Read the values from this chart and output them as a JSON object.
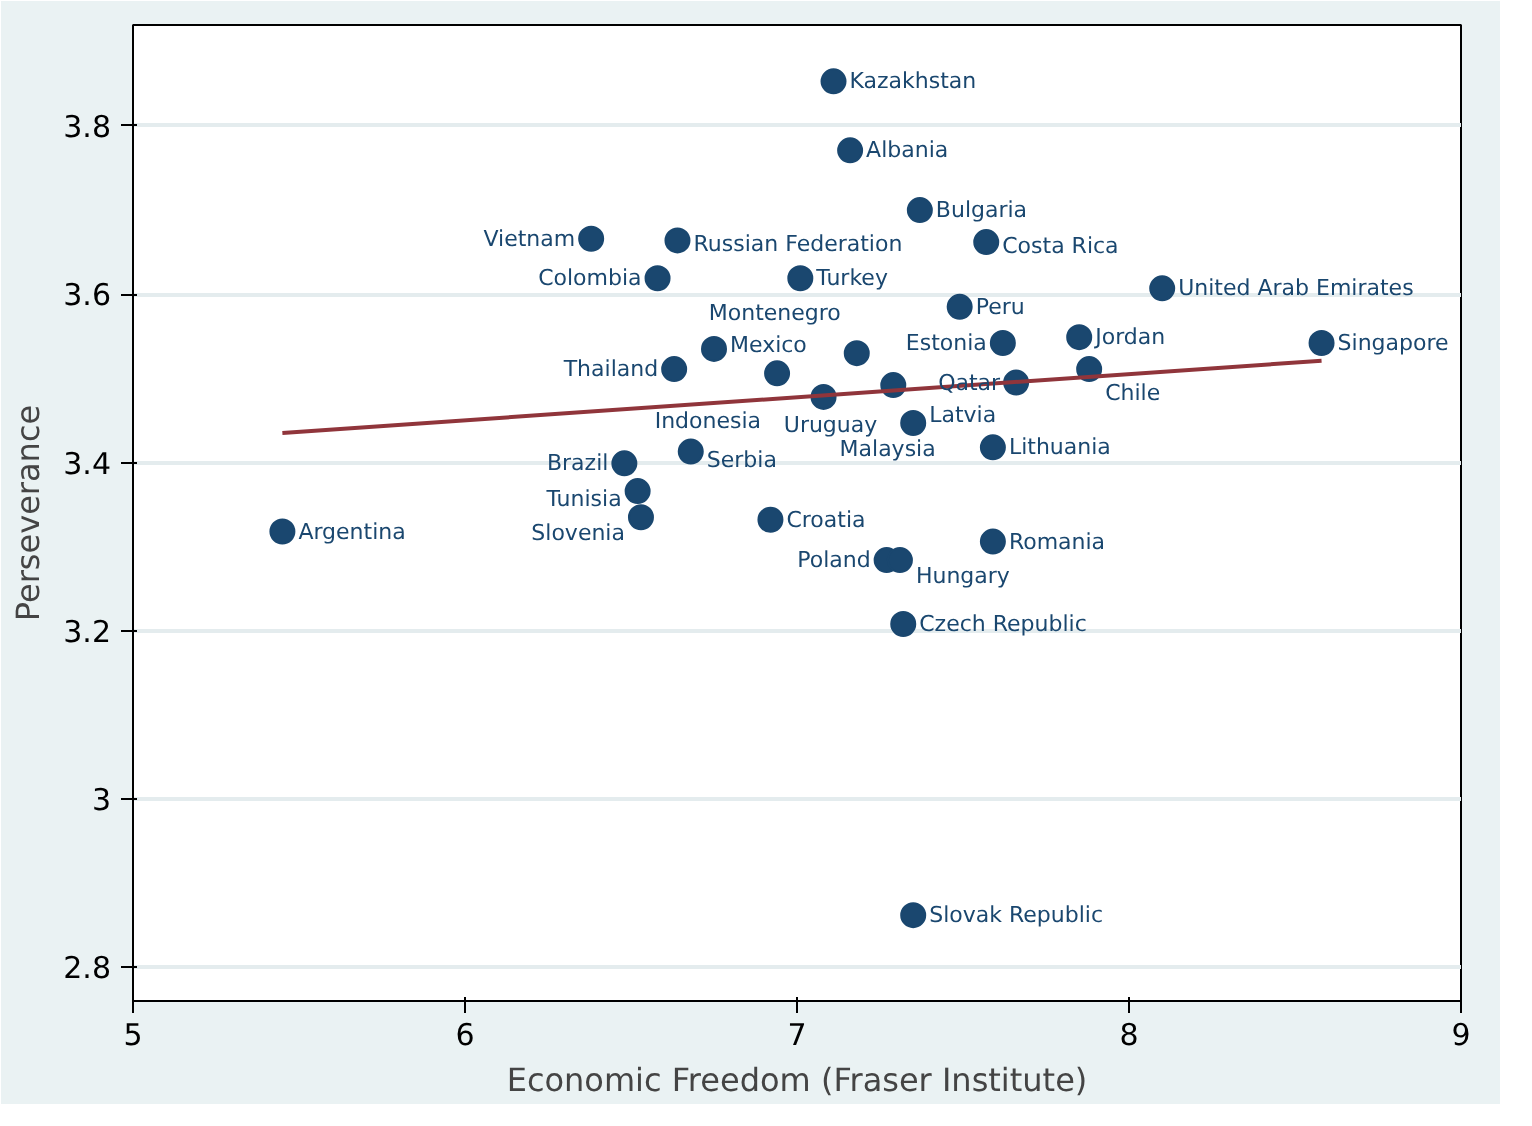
{
  "chart_data": {
    "type": "scatter",
    "xlabel": "Economic Freedom (Fraser Institute)",
    "ylabel": "Perseverance",
    "xlim": [
      5,
      9
    ],
    "ylim": [
      2.76,
      3.92
    ],
    "xticks": [
      5,
      6,
      7,
      8,
      9
    ],
    "yticks": [
      2.8,
      3,
      3.2,
      3.4,
      3.6,
      3.8
    ],
    "grid": "y",
    "marker": "circle",
    "series": [
      {
        "type": "scatter",
        "color": "#1a476f",
        "x": [
          7.11,
          7.16,
          7.37,
          6.38,
          6.64,
          7.57,
          6.58,
          7.01,
          8.1,
          7.49,
          7.85,
          8.58,
          6.75,
          7.18,
          7.62,
          6.63,
          6.94,
          7.88,
          7.29,
          7.66,
          7.08,
          7.35,
          7.59,
          6.68,
          6.48,
          6.52,
          6.53,
          6.92,
          5.45,
          7.59,
          7.27,
          7.31,
          7.32,
          7.35
        ],
        "values": [
          3.853,
          3.771,
          3.7,
          3.666,
          3.664,
          3.662,
          3.619,
          3.619,
          3.607,
          3.585,
          3.549,
          3.542,
          3.535,
          3.53,
          3.542,
          3.511,
          3.506,
          3.511,
          3.492,
          3.495,
          3.478,
          3.447,
          3.418,
          3.413,
          3.399,
          3.366,
          3.335,
          3.332,
          3.318,
          3.306,
          3.284,
          3.284,
          3.208,
          2.862
        ]
      },
      {
        "type": "line",
        "marker": "none",
        "color": "#90353b",
        "x": [
          5.45,
          8.58
        ],
        "values": [
          3.435,
          3.521
        ]
      }
    ],
    "annotations": [
      {
        "text": "Kazakhstan",
        "x": 7.11,
        "y": 3.853
      },
      {
        "text": "Albania",
        "x": 7.16,
        "y": 3.771
      },
      {
        "text": "Bulgaria",
        "x": 7.37,
        "y": 3.7
      },
      {
        "text": "Vietnam",
        "x": 6.38,
        "y": 3.666
      },
      {
        "text": "Russian Federation",
        "x": 6.64,
        "y": 3.664
      },
      {
        "text": "Costa Rica",
        "x": 7.57,
        "y": 3.662
      },
      {
        "text": "Colombia",
        "x": 6.58,
        "y": 3.619
      },
      {
        "text": "Turkey",
        "x": 7.01,
        "y": 3.619
      },
      {
        "text": "United Arab Emirates",
        "x": 8.1,
        "y": 3.607
      },
      {
        "text": "Peru",
        "x": 7.49,
        "y": 3.585
      },
      {
        "text": "Jordan",
        "x": 7.85,
        "y": 3.549
      },
      {
        "text": "Singapore",
        "x": 8.58,
        "y": 3.542
      },
      {
        "text": "Mexico",
        "x": 6.75,
        "y": 3.535
      },
      {
        "text": "Montenegro",
        "x": 7.18,
        "y": 3.53
      },
      {
        "text": "Estonia",
        "x": 7.62,
        "y": 3.542
      },
      {
        "text": "Thailand",
        "x": 6.63,
        "y": 3.511
      },
      {
        "text": "Indonesia",
        "x": 6.94,
        "y": 3.506
      },
      {
        "text": "Chile",
        "x": 7.88,
        "y": 3.511
      },
      {
        "text": "Uruguay",
        "x": 7.29,
        "y": 3.492
      },
      {
        "text": "Qatar",
        "x": 7.66,
        "y": 3.495
      },
      {
        "text": "Malaysia",
        "x": 7.08,
        "y": 3.478
      },
      {
        "text": "Latvia",
        "x": 7.35,
        "y": 3.447
      },
      {
        "text": "Lithuania",
        "x": 7.59,
        "y": 3.418
      },
      {
        "text": "Serbia",
        "x": 6.68,
        "y": 3.413
      },
      {
        "text": "Brazil",
        "x": 6.48,
        "y": 3.399
      },
      {
        "text": "Tunisia",
        "x": 6.52,
        "y": 3.366
      },
      {
        "text": "Slovenia",
        "x": 6.53,
        "y": 3.335
      },
      {
        "text": "Croatia",
        "x": 6.92,
        "y": 3.332
      },
      {
        "text": "Argentina",
        "x": 5.45,
        "y": 3.318
      },
      {
        "text": "Romania",
        "x": 7.59,
        "y": 3.306
      },
      {
        "text": "Poland",
        "x": 7.27,
        "y": 3.284
      },
      {
        "text": "Hungary",
        "x": 7.31,
        "y": 3.284
      },
      {
        "text": "Czech Republic",
        "x": 7.32,
        "y": 3.208
      },
      {
        "text": "Slovak Republic",
        "x": 7.35,
        "y": 2.862
      }
    ]
  }
}
